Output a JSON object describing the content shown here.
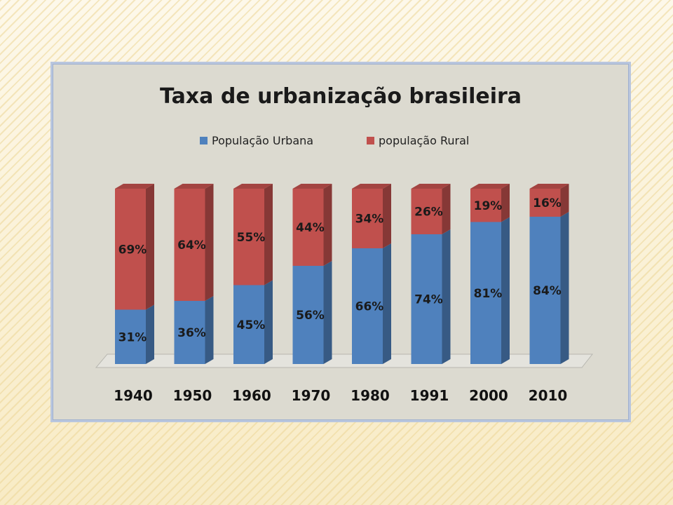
{
  "chart_data": {
    "type": "bar",
    "stacked": true,
    "title": "Taxa de urbanização brasileira",
    "categories": [
      "1940",
      "1950",
      "1960",
      "1970",
      "1980",
      "1991",
      "2000",
      "2010"
    ],
    "series": [
      {
        "name": "População Urbana",
        "values": [
          31,
          36,
          45,
          56,
          66,
          74,
          81,
          84
        ],
        "labels": [
          "31%",
          "36%",
          "45%",
          "56%",
          "66%",
          "74%",
          "81%",
          "84%"
        ],
        "color": "#4f81bd"
      },
      {
        "name": "população Rural",
        "values": [
          69,
          64,
          55,
          44,
          34,
          26,
          19,
          16
        ],
        "labels": [
          "69%",
          "64%",
          "55%",
          "44%",
          "34%",
          "26%",
          "19%",
          "16%"
        ],
        "color": "#c0504d"
      }
    ],
    "ylim": [
      0,
      100
    ],
    "legend_position": "top",
    "grid": false
  }
}
